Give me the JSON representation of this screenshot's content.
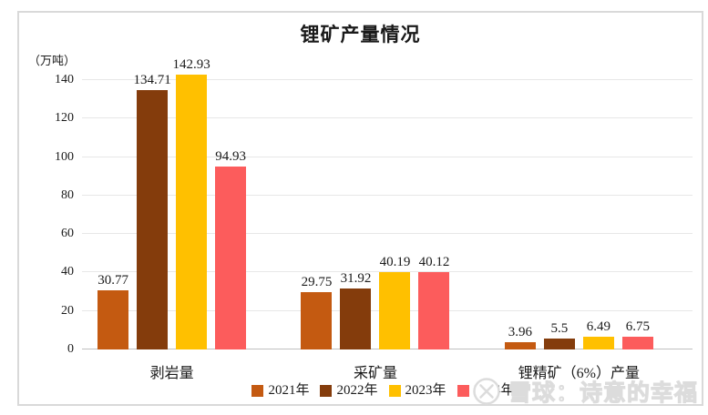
{
  "title": "锂矿产量情况",
  "unit_label": "（万吨）",
  "chart_data": {
    "type": "bar",
    "title": "锂矿产量情况",
    "ylabel": "（万吨）",
    "categories": [
      "剥岩量",
      "采矿量",
      "锂精矿（6%）产量"
    ],
    "series": [
      {
        "name": "2021年",
        "color": "#C45A11",
        "values": [
          30.77,
          29.75,
          3.96
        ]
      },
      {
        "name": "2022年",
        "color": "#843C0C",
        "values": [
          134.71,
          31.92,
          5.5
        ]
      },
      {
        "name": "2023年",
        "color": "#FFC000",
        "values": [
          142.93,
          40.19,
          6.49
        ]
      },
      {
        "name": "2024年",
        "color": "#FC5C5C",
        "values": [
          94.93,
          40.12,
          6.75
        ]
      }
    ],
    "value_labels": [
      [
        "30.77",
        "134.71",
        "142.93",
        "94.93"
      ],
      [
        "29.75",
        "31.92",
        "40.19",
        "40.12"
      ],
      [
        "3.96",
        "5.5",
        "6.49",
        "6.75"
      ]
    ],
    "ylim": [
      0,
      140
    ],
    "yticks": [
      0,
      20,
      40,
      60,
      80,
      100,
      120,
      140
    ],
    "grid": true,
    "legend_position": "bottom"
  },
  "watermark": {
    "logo": "xueqiu-logo",
    "text": "雪球：诗意的幸福"
  }
}
